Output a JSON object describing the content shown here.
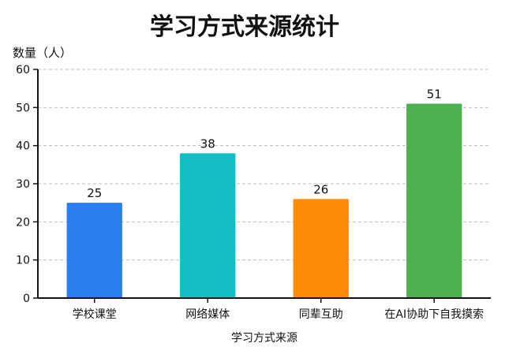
{
  "chart_data": {
    "type": "bar",
    "title": "学习方式来源统计",
    "ylabel": "数量（人）",
    "xlabel": "学习方式来源",
    "categories": [
      "学校课堂",
      "网络媒体",
      "同辈互助",
      "在AI协助下自我摸索"
    ],
    "values": [
      25,
      38,
      26,
      51
    ],
    "colors": [
      "#2b7ef0",
      "#14bcc4",
      "#ff8a0a",
      "#4caf50"
    ],
    "ylim": [
      0,
      60
    ],
    "yticks": [
      0,
      10,
      20,
      30,
      40,
      50,
      60
    ],
    "grid": true,
    "legend": false
  }
}
